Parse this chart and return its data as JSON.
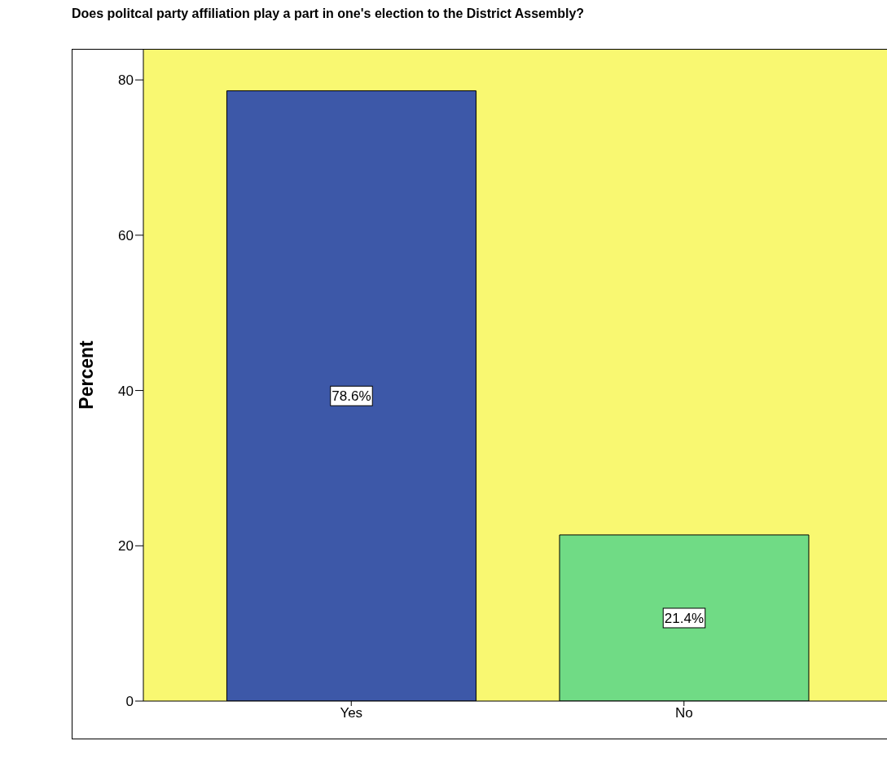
{
  "chart_data": {
    "type": "bar",
    "title": "Does politcal party affiliation play a part in one's election to the District Assembly?",
    "ylabel": "Percent",
    "categories": [
      "Yes",
      "No"
    ],
    "values": [
      78.6,
      21.4
    ],
    "colors": [
      "#3d58a8",
      "#70db85"
    ],
    "value_labels": [
      "78.6%",
      "21.4%"
    ],
    "ylim": [
      0,
      84
    ],
    "yticks": [
      0,
      20,
      40,
      60,
      80
    ],
    "grid": false,
    "legend": false
  }
}
